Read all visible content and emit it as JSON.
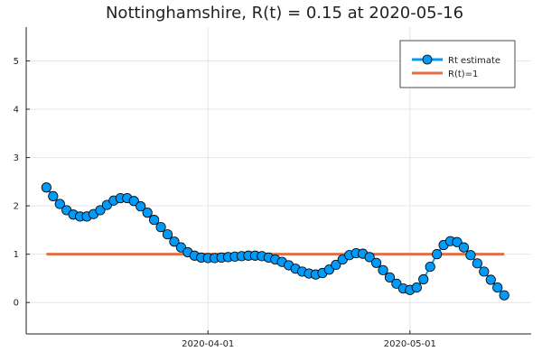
{
  "chart_data": {
    "type": "line",
    "title": "Nottinghamshire, R(t) = 0.15 at 2020-05-16",
    "xlabel": "",
    "ylabel": "",
    "x_start": "2020-03-08",
    "x_end": "2020-05-16",
    "xlim": [
      "2020-03-05",
      "2020-05-19"
    ],
    "ylim": [
      -0.65,
      5.7
    ],
    "x_ticks": [
      {
        "date": "2020-04-01",
        "label": "2020-04-01"
      },
      {
        "date": "2020-05-01",
        "label": "2020-05-01"
      }
    ],
    "y_ticks": [
      0,
      1,
      2,
      3,
      4,
      5
    ],
    "grid": true,
    "legend_position": "top-right",
    "series": [
      {
        "name": "Rt estimate",
        "color": "#009af9",
        "marker": "circle",
        "values": [
          2.38,
          2.2,
          2.04,
          1.91,
          1.82,
          1.78,
          1.78,
          1.83,
          1.91,
          2.02,
          2.11,
          2.16,
          2.16,
          2.1,
          1.99,
          1.86,
          1.71,
          1.56,
          1.41,
          1.26,
          1.14,
          1.04,
          0.97,
          0.93,
          0.92,
          0.92,
          0.93,
          0.94,
          0.95,
          0.96,
          0.97,
          0.97,
          0.96,
          0.93,
          0.89,
          0.84,
          0.77,
          0.7,
          0.64,
          0.6,
          0.58,
          0.61,
          0.68,
          0.78,
          0.89,
          0.98,
          1.02,
          1.01,
          0.94,
          0.82,
          0.67,
          0.52,
          0.39,
          0.29,
          0.26,
          0.31,
          0.48,
          0.74,
          1.0,
          1.19,
          1.27,
          1.25,
          1.14,
          0.98,
          0.81,
          0.64,
          0.47,
          0.31,
          0.15
        ]
      },
      {
        "name": "R(t)=1",
        "color": "#e26f46",
        "constant": 1
      }
    ]
  }
}
